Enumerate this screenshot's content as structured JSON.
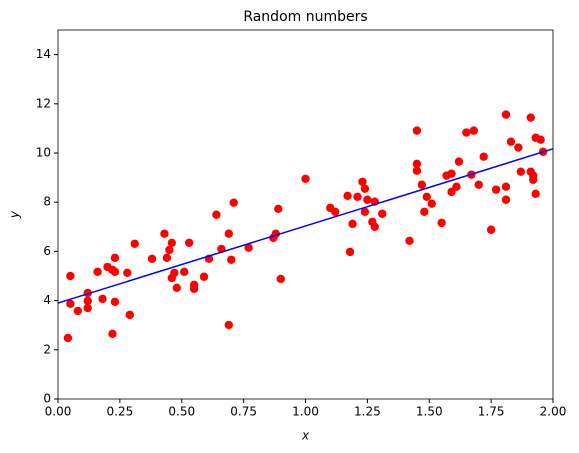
{
  "chart_data": {
    "type": "scatter",
    "title": "Random numbers",
    "x_label": "x",
    "y_label": "y",
    "xlim": [
      0,
      2
    ],
    "ylim": [
      0,
      15
    ],
    "xticks": [
      {
        "value": 0,
        "label": "0.00"
      },
      {
        "value": 0.25,
        "label": "0.25"
      },
      {
        "value": 0.5,
        "label": "0.50"
      },
      {
        "value": 0.75,
        "label": "0.75"
      },
      {
        "value": 1,
        "label": "1.00"
      },
      {
        "value": 1.25,
        "label": "1.25"
      },
      {
        "value": 1.5,
        "label": "1.50"
      },
      {
        "value": 1.75,
        "label": "1.75"
      },
      {
        "value": 2,
        "label": "2.00"
      }
    ],
    "yticks": [
      0,
      2,
      4,
      6,
      8,
      10,
      12,
      14
    ],
    "series": [
      {
        "type": "scatter",
        "color": "#ff0000",
        "x": [
          0.04,
          0.05,
          0.05,
          0.08,
          0.12,
          0.12,
          0.12,
          0.16,
          0.18,
          0.2,
          0.22,
          0.23,
          0.22,
          0.23,
          0.23,
          0.28,
          0.29,
          0.31,
          0.38,
          0.43,
          0.44,
          0.45,
          0.46,
          0.46,
          0.47,
          0.48,
          0.51,
          0.53,
          0.55,
          0.55,
          0.59,
          0.61,
          0.64,
          0.66,
          0.69,
          0.69,
          0.7,
          0.71,
          0.77,
          0.87,
          0.88,
          0.89,
          0.9,
          1.0,
          1.1,
          1.12,
          1.17,
          1.18,
          1.19,
          1.21,
          1.23,
          1.24,
          1.24,
          1.25,
          1.27,
          1.28,
          1.28,
          1.31,
          1.42,
          1.45,
          1.45,
          1.45,
          1.47,
          1.48,
          1.49,
          1.51,
          1.55,
          1.57,
          1.59,
          1.59,
          1.61,
          1.62,
          1.65,
          1.67,
          1.68,
          1.7,
          1.72,
          1.75,
          1.77,
          1.81,
          1.81,
          1.81,
          1.83,
          1.86,
          1.87,
          1.91,
          1.91,
          1.92,
          1.92,
          1.93,
          1.93,
          1.95,
          1.96
        ],
        "values": [
          2.48,
          5.0,
          3.87,
          3.58,
          4.31,
          3.99,
          3.7,
          5.17,
          4.07,
          5.37,
          5.25,
          3.95,
          2.65,
          5.74,
          5.17,
          5.13,
          3.42,
          6.31,
          5.7,
          6.72,
          5.74,
          6.06,
          6.35,
          4.92,
          5.13,
          4.52,
          5.17,
          6.35,
          4.48,
          4.64,
          4.97,
          5.7,
          7.49,
          6.1,
          6.72,
          3.01,
          5.66,
          7.98,
          6.15,
          6.55,
          6.72,
          7.73,
          4.88,
          8.95,
          7.77,
          7.61,
          8.26,
          5.98,
          7.12,
          8.22,
          8.83,
          8.55,
          7.61,
          8.1,
          7.2,
          7.0,
          8.02,
          7.53,
          6.43,
          9.56,
          10.91,
          9.28,
          8.71,
          7.61,
          8.22,
          7.94,
          7.16,
          9.08,
          9.16,
          8.42,
          8.63,
          9.65,
          10.83,
          9.12,
          10.91,
          8.71,
          9.85,
          6.88,
          8.51,
          8.63,
          8.1,
          11.56,
          10.46,
          10.22,
          9.24,
          11.44,
          9.24,
          8.91,
          9.08,
          8.34,
          10.62,
          10.54,
          10.05
        ]
      },
      {
        "type": "line",
        "color": "#0000ff",
        "x": [
          0,
          2
        ],
        "values": [
          3.9,
          10.17
        ]
      }
    ]
  }
}
